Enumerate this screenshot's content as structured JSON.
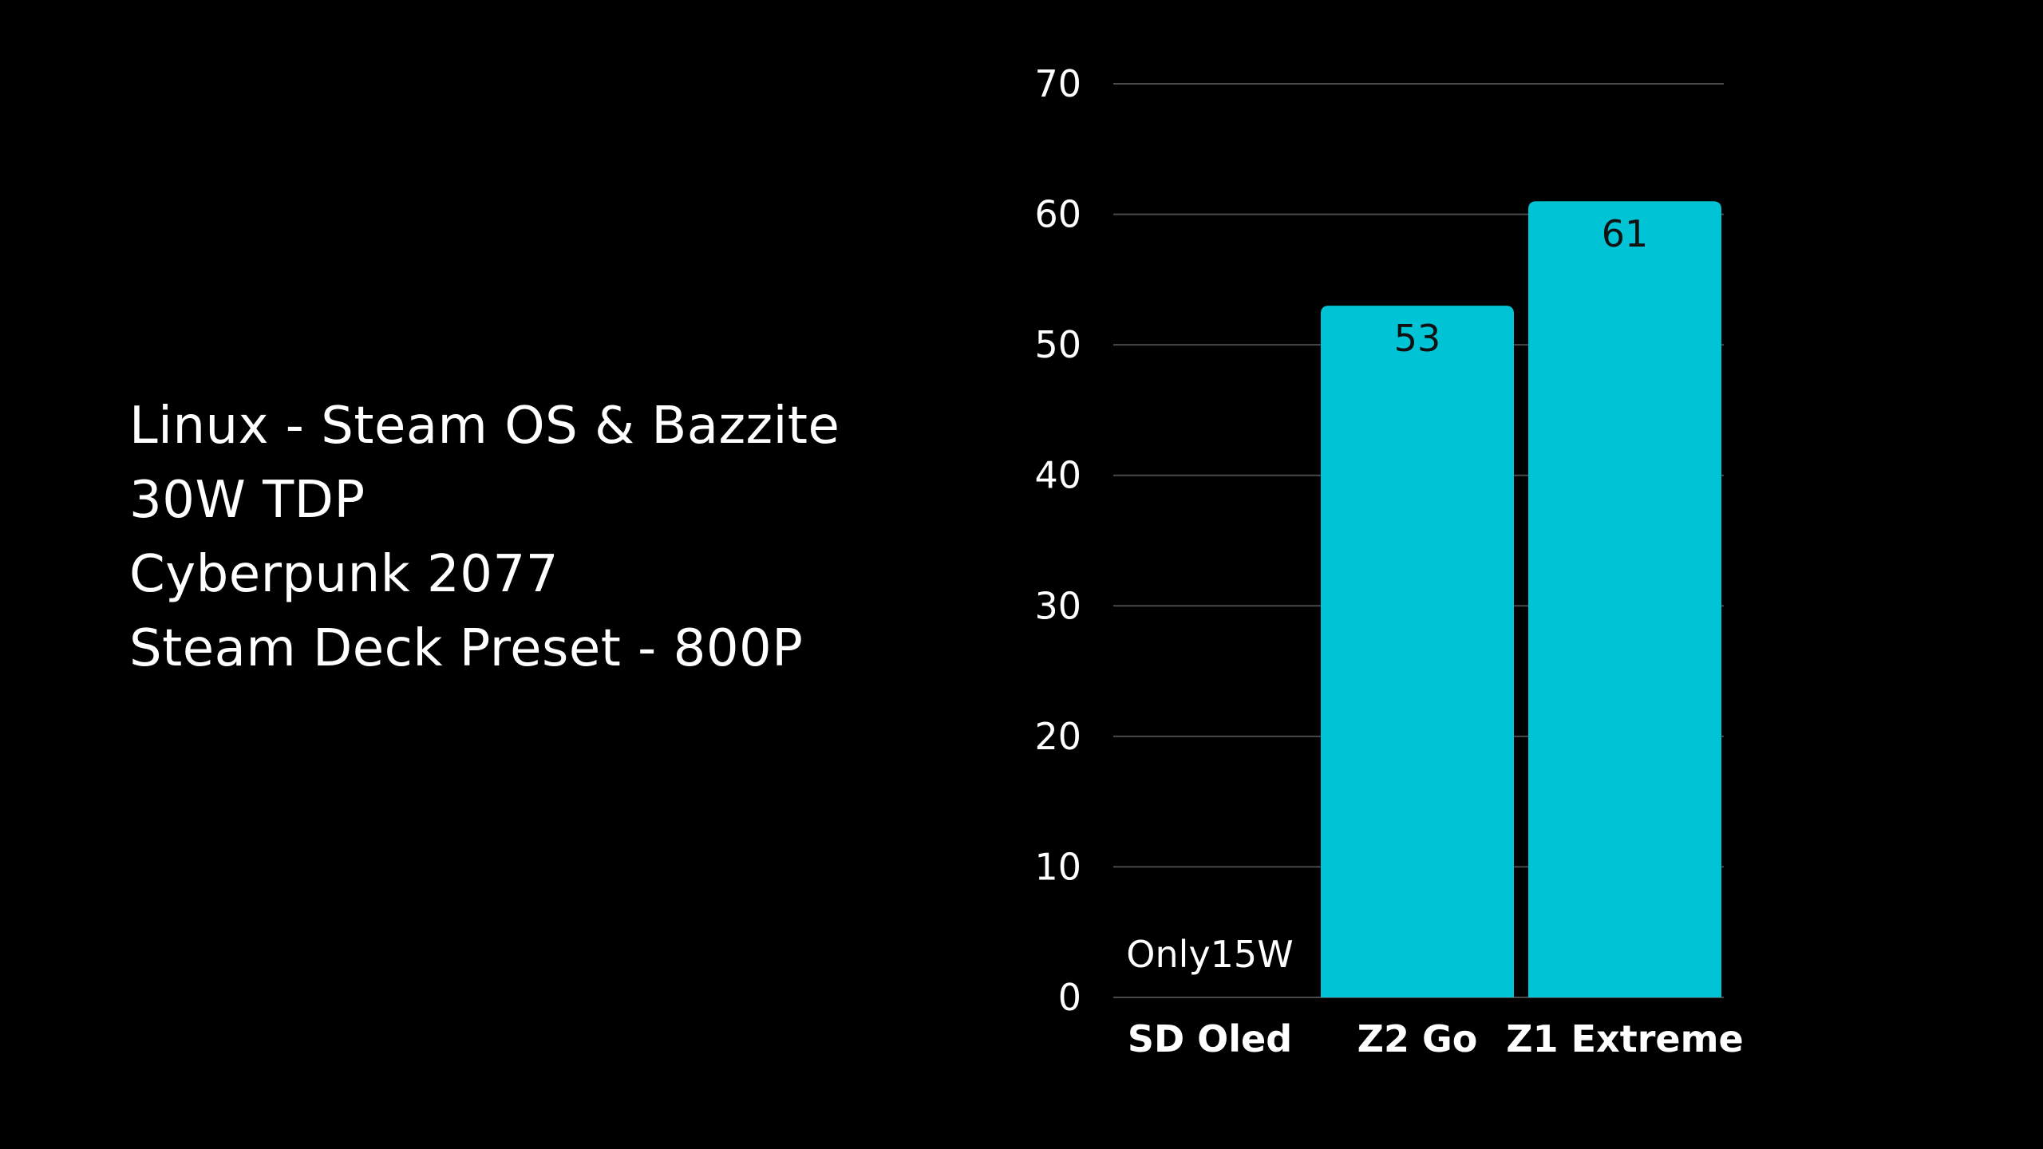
{
  "info": {
    "lines": [
      "Linux - Steam OS & Bazzite",
      "30W TDP",
      "Cyberpunk 2077",
      "Steam Deck Preset - 800P"
    ]
  },
  "chart_data": {
    "type": "bar",
    "categories": [
      "SD Oled",
      "Z2 Go",
      "Z1 Extreme"
    ],
    "values": [
      null,
      53,
      61
    ],
    "data_labels": [
      "",
      "53",
      "61"
    ],
    "annotations": [
      {
        "category": "SD Oled",
        "text": "Only15W"
      }
    ],
    "title": "",
    "xlabel": "",
    "ylabel": "",
    "ylim": [
      0,
      70
    ],
    "yticks": [
      0,
      10,
      20,
      30,
      40,
      50,
      60,
      70
    ],
    "grid": true,
    "legend": "none",
    "bar_color": "#00c3d6",
    "grid_color": "#4a4a4a",
    "text_color": "#ffffff",
    "data_label_color": "#111111"
  }
}
